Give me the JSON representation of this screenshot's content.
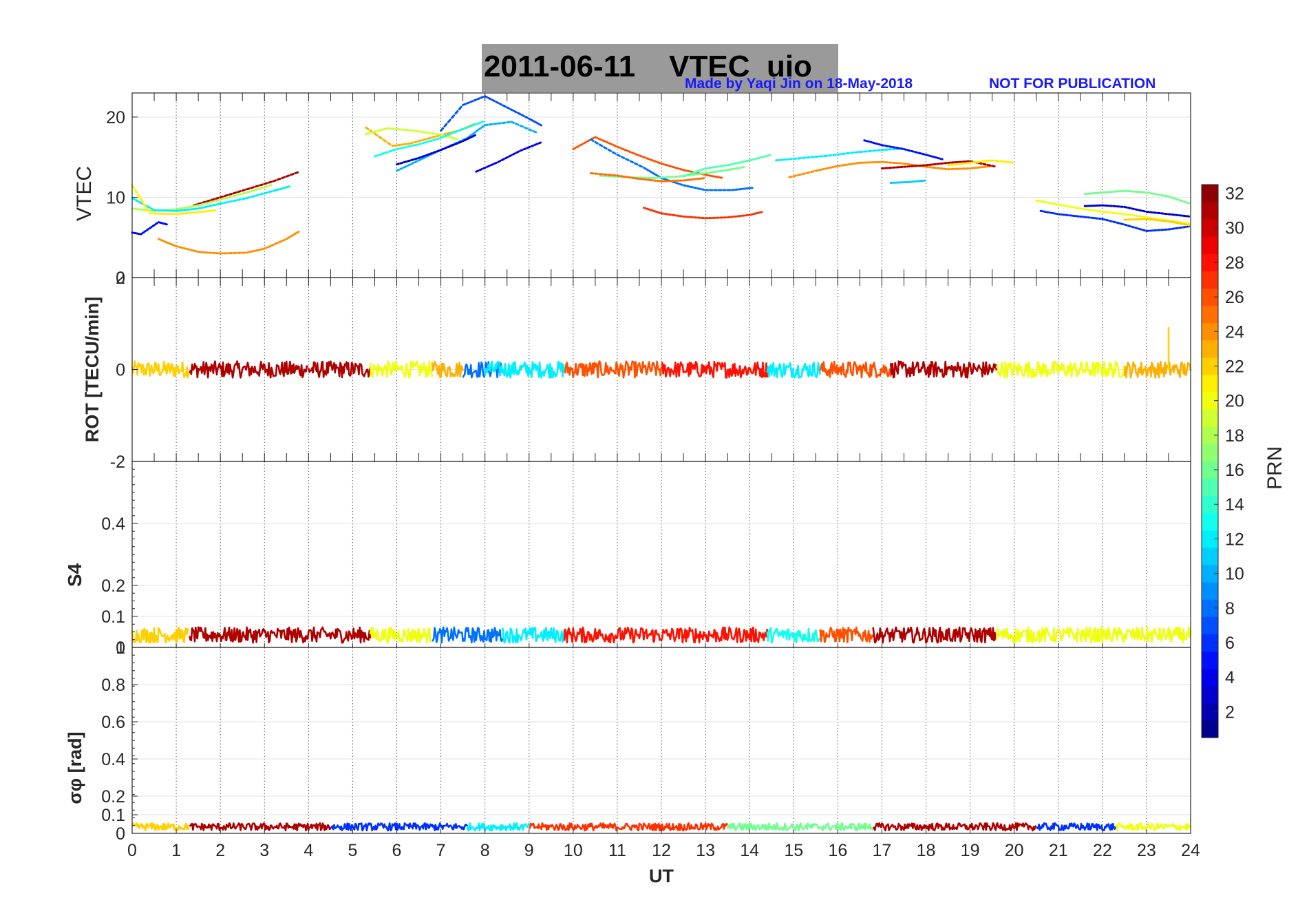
{
  "figure": {
    "title_date": "2011-06-11",
    "title_product": "VTEC",
    "title_station": "uio",
    "credit": "Made by Yaqi Jin on 18-May-2018",
    "notice": "NOT FOR PUBLICATION"
  },
  "colors": {
    "credit": "#1a1aff",
    "title_box": "#9a9a9a"
  },
  "chart_data": [
    {
      "type": "scatter",
      "panel": "vtec",
      "ylabel": "VTEC",
      "xlabel": "",
      "xlim": [
        0,
        24
      ],
      "ylim": [
        0,
        23
      ],
      "yticks": [
        0,
        10,
        20
      ],
      "series": [
        {
          "prn": 31,
          "x": [
            1.4,
            2.0,
            2.6,
            3.2,
            3.8
          ],
          "y": [
            9.0,
            10.0,
            11.0,
            12.0,
            13.2
          ]
        },
        {
          "prn": 24,
          "x": [
            0.6,
            1.0,
            1.5,
            2.0,
            2.6,
            3.0,
            3.5,
            3.8
          ],
          "y": [
            4.8,
            3.9,
            3.2,
            3.0,
            3.1,
            3.6,
            4.8,
            5.8
          ]
        },
        {
          "prn": 18,
          "x": [
            0.0,
            0.5,
            1.0,
            1.5,
            2.0,
            2.6,
            3.2
          ],
          "y": [
            8.6,
            8.3,
            8.5,
            9.0,
            9.7,
            10.6,
            11.6
          ]
        },
        {
          "prn": 12,
          "x": [
            0.0,
            0.5,
            1.0,
            1.5,
            2.0,
            2.6,
            3.2,
            3.6
          ],
          "y": [
            9.9,
            8.4,
            8.3,
            8.6,
            9.2,
            9.9,
            10.8,
            11.4
          ]
        },
        {
          "prn": 21,
          "x": [
            0.0,
            0.4,
            1.0,
            1.6,
            1.9
          ],
          "y": [
            11.5,
            8.0,
            7.9,
            8.2,
            8.4
          ]
        },
        {
          "prn": 5,
          "x": [
            0.0,
            0.2,
            0.6,
            0.8
          ],
          "y": [
            5.6,
            5.4,
            6.9,
            6.6
          ]
        },
        {
          "prn": 23,
          "x": [
            5.3,
            5.9,
            6.3,
            6.9,
            7.4,
            7.8
          ],
          "y": [
            18.7,
            16.4,
            16.7,
            17.6,
            18.3,
            19.2
          ]
        },
        {
          "prn": 19,
          "x": [
            5.3,
            5.8,
            6.4,
            7.0,
            7.4
          ],
          "y": [
            17.9,
            18.6,
            18.3,
            17.8,
            17.2
          ]
        },
        {
          "prn": 13,
          "x": [
            5.5,
            6.0,
            6.5,
            7.0,
            7.5,
            8.0
          ],
          "y": [
            15.1,
            16.0,
            16.6,
            17.4,
            18.5,
            19.5
          ]
        },
        {
          "prn": 10,
          "x": [
            6.0,
            6.5,
            7.0,
            7.6,
            8.0,
            8.6,
            9.2
          ],
          "y": [
            13.3,
            14.6,
            15.9,
            17.4,
            19.0,
            19.4,
            18.0
          ]
        },
        {
          "prn": 7,
          "x": [
            7.0,
            7.5,
            8.0,
            8.5,
            9.0,
            9.3
          ],
          "y": [
            18.3,
            21.5,
            22.6,
            21.2,
            19.8,
            18.9
          ]
        },
        {
          "prn": 3,
          "x": [
            6.0,
            6.5,
            7.0,
            7.5,
            7.8
          ],
          "y": [
            14.1,
            14.9,
            15.9,
            17.0,
            17.8
          ]
        },
        {
          "prn": 4,
          "x": [
            7.8,
            8.3,
            8.8,
            9.3
          ],
          "y": [
            13.2,
            14.4,
            15.8,
            16.9
          ]
        },
        {
          "prn": 26,
          "x": [
            10.0,
            10.5,
            11.0,
            11.5,
            12.0,
            12.5,
            13.0,
            13.4
          ],
          "y": [
            16.0,
            17.5,
            16.3,
            15.2,
            14.2,
            13.4,
            12.8,
            12.4
          ]
        },
        {
          "prn": 27,
          "x": [
            11.6,
            12.0,
            12.5,
            13.0,
            13.5,
            14.0,
            14.3
          ],
          "y": [
            8.7,
            8.0,
            7.6,
            7.4,
            7.5,
            7.8,
            8.2
          ]
        },
        {
          "prn": 8,
          "x": [
            10.4,
            11.0,
            11.6,
            12.0,
            12.5,
            13.0,
            13.6,
            14.1
          ],
          "y": [
            17.2,
            15.3,
            13.7,
            12.4,
            11.5,
            10.9,
            10.9,
            11.2
          ]
        },
        {
          "prn": 16,
          "x": [
            10.6,
            11.2,
            11.8,
            12.4,
            13.0,
            13.5,
            13.9
          ],
          "y": [
            12.7,
            12.5,
            12.4,
            12.6,
            13.0,
            13.4,
            13.8
          ]
        },
        {
          "prn": 25,
          "x": [
            10.4,
            11.0,
            11.5,
            12.0,
            12.5,
            13.0
          ],
          "y": [
            13.0,
            12.7,
            12.3,
            12.0,
            12.1,
            12.4
          ]
        },
        {
          "prn": 15,
          "x": [
            12.5,
            13.0,
            13.5,
            14.0,
            14.5
          ],
          "y": [
            12.6,
            13.6,
            14.0,
            14.6,
            15.3
          ]
        },
        {
          "prn": 24,
          "x": [
            14.9,
            15.5,
            16.0,
            16.5,
            17.0,
            17.5,
            18.0,
            18.5,
            19.0,
            19.5
          ],
          "y": [
            12.5,
            13.3,
            13.9,
            14.3,
            14.4,
            14.2,
            13.8,
            13.5,
            13.6,
            13.9
          ]
        },
        {
          "prn": 12,
          "x": [
            14.6,
            15.2,
            15.8,
            16.4,
            17.0,
            17.5
          ],
          "y": [
            14.6,
            14.9,
            15.2,
            15.6,
            15.9,
            16.1
          ]
        },
        {
          "prn": 31,
          "x": [
            17.0,
            17.5,
            18.0,
            18.5,
            19.0,
            19.6
          ],
          "y": [
            13.6,
            13.8,
            14.0,
            14.3,
            14.5,
            13.8
          ]
        },
        {
          "prn": 5,
          "x": [
            16.6,
            17.0,
            17.5,
            18.0,
            18.4
          ],
          "y": [
            17.1,
            16.5,
            16.0,
            15.3,
            14.7
          ]
        },
        {
          "prn": 11,
          "x": [
            17.2,
            17.6,
            18.0
          ],
          "y": [
            11.8,
            11.9,
            12.1
          ]
        },
        {
          "prn": 21,
          "x": [
            18.5,
            19.0,
            19.5,
            20.0
          ],
          "y": [
            14.0,
            14.3,
            14.6,
            14.3
          ]
        },
        {
          "prn": 20,
          "x": [
            20.5,
            21.0,
            21.5,
            22.0,
            22.5,
            23.0,
            23.5,
            24.0
          ],
          "y": [
            9.6,
            9.1,
            8.6,
            8.2,
            7.9,
            7.5,
            7.1,
            6.7
          ]
        },
        {
          "prn": 16,
          "x": [
            21.6,
            22.0,
            22.5,
            23.0,
            23.5,
            24.0
          ],
          "y": [
            10.4,
            10.6,
            10.8,
            10.6,
            10.1,
            9.2
          ]
        },
        {
          "prn": 6,
          "x": [
            20.6,
            21.0,
            21.5,
            22.0,
            22.5,
            23.0,
            23.5,
            24.0
          ],
          "y": [
            8.3,
            7.9,
            7.6,
            7.3,
            6.6,
            5.8,
            6.0,
            6.4
          ]
        },
        {
          "prn": 3,
          "x": [
            21.6,
            22.0,
            22.5,
            23.0,
            23.5,
            24.0
          ],
          "y": [
            8.9,
            9.0,
            8.8,
            8.2,
            7.9,
            7.6
          ]
        },
        {
          "prn": 22,
          "x": [
            22.5,
            23.0,
            23.5,
            24.0
          ],
          "y": [
            7.2,
            7.3,
            7.0,
            6.5
          ]
        }
      ]
    },
    {
      "type": "scatter",
      "panel": "rot",
      "ylabel": "ROT [TECU/min]",
      "xlabel": "",
      "xlim": [
        0,
        24
      ],
      "ylim": [
        -2,
        2
      ],
      "yticks": [
        -2,
        0,
        2
      ],
      "noise_amp": 0.18,
      "segments": [
        {
          "prn": 22,
          "x0": 0.0,
          "x1": 1.3
        },
        {
          "prn": 31,
          "x0": 1.3,
          "x1": 4.0
        },
        {
          "prn": 31,
          "x0": 4.0,
          "x1": 5.4
        },
        {
          "prn": 20,
          "x0": 5.4,
          "x1": 6.8
        },
        {
          "prn": 23,
          "x0": 6.8,
          "x1": 7.5
        },
        {
          "prn": 8,
          "x0": 7.5,
          "x1": 8.4
        },
        {
          "prn": 12,
          "x0": 8.0,
          "x1": 9.8
        },
        {
          "prn": 26,
          "x0": 9.8,
          "x1": 12.0
        },
        {
          "prn": 28,
          "x0": 12.0,
          "x1": 14.4
        },
        {
          "prn": 12,
          "x0": 14.4,
          "x1": 15.6
        },
        {
          "prn": 26,
          "x0": 15.6,
          "x1": 17.2
        },
        {
          "prn": 31,
          "x0": 17.2,
          "x1": 19.6
        },
        {
          "prn": 20,
          "x0": 19.6,
          "x1": 22.5
        },
        {
          "prn": 23,
          "x0": 22.5,
          "x1": 24.0
        }
      ],
      "spike": {
        "prn": 22,
        "x": 23.5,
        "y": 0.92
      }
    },
    {
      "type": "scatter",
      "panel": "s4",
      "ylabel": "S4",
      "xlabel": "",
      "xlim": [
        0,
        24
      ],
      "ylim": [
        0,
        0.6
      ],
      "yticks": [
        0,
        0.1,
        0.2,
        0.4
      ],
      "base": 0.04,
      "noise_amp": 0.025,
      "segments": [
        {
          "prn": 22,
          "x0": 0.0,
          "x1": 1.3
        },
        {
          "prn": 31,
          "x0": 1.3,
          "x1": 5.4
        },
        {
          "prn": 20,
          "x0": 5.4,
          "x1": 6.8
        },
        {
          "prn": 8,
          "x0": 6.8,
          "x1": 8.4
        },
        {
          "prn": 12,
          "x0": 8.4,
          "x1": 9.8
        },
        {
          "prn": 28,
          "x0": 9.8,
          "x1": 14.4
        },
        {
          "prn": 13,
          "x0": 14.4,
          "x1": 15.6
        },
        {
          "prn": 26,
          "x0": 15.6,
          "x1": 16.8
        },
        {
          "prn": 31,
          "x0": 16.8,
          "x1": 19.6
        },
        {
          "prn": 20,
          "x0": 19.6,
          "x1": 24.0
        }
      ]
    },
    {
      "type": "scatter",
      "panel": "sigma_phi",
      "ylabel": "σφ [rad]",
      "xlabel": "UT",
      "xlim": [
        0,
        24
      ],
      "ylim": [
        0,
        1
      ],
      "yticks": [
        0,
        0.1,
        0.2,
        0.4,
        0.6,
        0.8,
        1
      ],
      "xticks": [
        0,
        1,
        2,
        3,
        4,
        5,
        6,
        7,
        8,
        9,
        10,
        11,
        12,
        13,
        14,
        15,
        16,
        17,
        18,
        19,
        20,
        21,
        22,
        23,
        24
      ],
      "base": 0.035,
      "noise_amp": 0.02,
      "segments": [
        {
          "prn": 22,
          "x0": 0.0,
          "x1": 1.3
        },
        {
          "prn": 31,
          "x0": 1.3,
          "x1": 4.5
        },
        {
          "prn": 6,
          "x0": 4.5,
          "x1": 7.6
        },
        {
          "prn": 12,
          "x0": 7.6,
          "x1": 9.0
        },
        {
          "prn": 27,
          "x0": 9.0,
          "x1": 13.5
        },
        {
          "prn": 16,
          "x0": 13.5,
          "x1": 16.8
        },
        {
          "prn": 31,
          "x0": 16.8,
          "x1": 20.5
        },
        {
          "prn": 6,
          "x0": 20.5,
          "x1": 22.3
        },
        {
          "prn": 20,
          "x0": 22.3,
          "x1": 24.0
        }
      ]
    },
    {
      "type": "heatmap",
      "panel": "colorbar",
      "label": "PRN",
      "range": [
        1,
        32
      ],
      "ticks": [
        2,
        4,
        6,
        8,
        10,
        12,
        14,
        16,
        18,
        20,
        22,
        24,
        26,
        28,
        30,
        32
      ],
      "colormap": "jet"
    }
  ]
}
